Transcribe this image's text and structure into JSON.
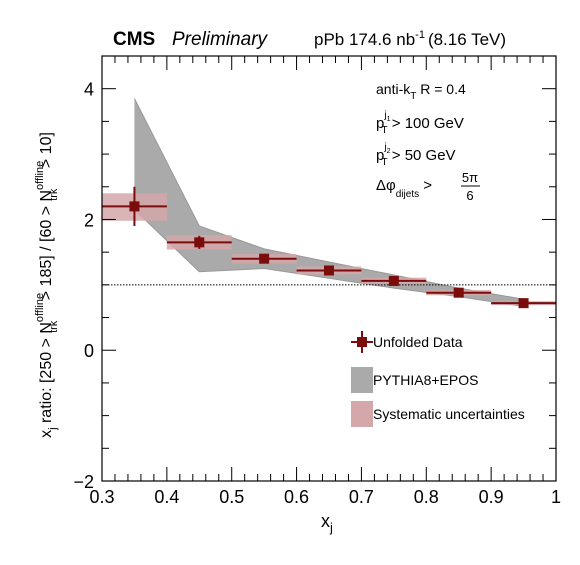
{
  "header": {
    "experiment": "CMS",
    "status": "Preliminary",
    "lumi_prefix": "pPb 174.6 nb",
    "lumi_sup": "-1",
    "energy": "(8.16 TeV)"
  },
  "annotations": {
    "algo_prefix": "anti-k",
    "algo_sub": "T",
    "algo_suffix": " R = 0.4",
    "pt1_p": "p",
    "pt1_sup": "j",
    "pt1_sup_sub": "1",
    "pt1_sub": "T",
    "pt1_cut": " > 100 GeV",
    "pt2_p": "p",
    "pt2_sup": "j",
    "pt2_sup_sub": "2",
    "pt2_sub": "T",
    "pt2_cut": " > 50 GeV",
    "dphi_sym": "Δφ",
    "dphi_sub": "dijets",
    "dphi_gt": " > ",
    "dphi_num": "5π",
    "dphi_den": "6"
  },
  "chart_data": {
    "type": "scatter",
    "xlabel": "x",
    "xlabel_sub": "j",
    "ylabel_parts": {
      "a": "x",
      "a_sub": "j",
      "b": " ratio: [250 > N",
      "b_sup": "offline",
      "b_sub": "trk",
      "c": " > 185] / [60 > N",
      "c_sup": "offline",
      "c_sub": "trk",
      "d": " > 10]"
    },
    "xlim": [
      0.3,
      1.0
    ],
    "ylim": [
      -2,
      4.5
    ],
    "xticks": [
      "0.3",
      "0.4",
      "0.5",
      "0.6",
      "0.7",
      "0.8",
      "0.9",
      "1"
    ],
    "xtick_values": [
      0.3,
      0.4,
      0.5,
      0.6,
      0.7,
      0.8,
      0.9,
      1.0
    ],
    "yticks": [
      "−2",
      "0",
      "2",
      "4"
    ],
    "ytick_values": [
      -2,
      0,
      2,
      4
    ],
    "reference_line": 1.0,
    "series": [
      {
        "name": "Unfolded Data",
        "color": "#7a0c0c",
        "points": [
          {
            "x": 0.35,
            "xlo": 0.3,
            "xhi": 0.4,
            "y": 2.2,
            "yerr": 0.3
          },
          {
            "x": 0.45,
            "xlo": 0.4,
            "xhi": 0.5,
            "y": 1.65,
            "yerr": 0.1
          },
          {
            "x": 0.55,
            "xlo": 0.5,
            "xhi": 0.6,
            "y": 1.4,
            "yerr": 0.04
          },
          {
            "x": 0.65,
            "xlo": 0.6,
            "xhi": 0.7,
            "y": 1.22,
            "yerr": 0.03
          },
          {
            "x": 0.75,
            "xlo": 0.7,
            "xhi": 0.8,
            "y": 1.06,
            "yerr": 0.02
          },
          {
            "x": 0.85,
            "xlo": 0.8,
            "xhi": 0.9,
            "y": 0.88,
            "yerr": 0.02
          },
          {
            "x": 0.95,
            "xlo": 0.9,
            "xhi": 1.0,
            "y": 0.72,
            "yerr": 0.02
          }
        ]
      },
      {
        "name": "PYTHIA8+EPOS",
        "color": "#aaaaaa",
        "band": [
          {
            "x": 0.35,
            "lo": 2.15,
            "hi": 3.85
          },
          {
            "x": 0.45,
            "lo": 1.2,
            "hi": 1.9
          },
          {
            "x": 0.55,
            "lo": 1.25,
            "hi": 1.55
          },
          {
            "x": 0.65,
            "lo": 1.1,
            "hi": 1.35
          },
          {
            "x": 0.75,
            "lo": 0.95,
            "hi": 1.15
          },
          {
            "x": 0.85,
            "lo": 0.82,
            "hi": 0.95
          },
          {
            "x": 0.95,
            "lo": 0.67,
            "hi": 0.78
          }
        ]
      },
      {
        "name": "Systematic uncertainties",
        "color": "#d4a7aa",
        "boxes": [
          {
            "xlo": 0.3,
            "xhi": 0.4,
            "lo": 1.98,
            "hi": 2.4
          },
          {
            "xlo": 0.4,
            "xhi": 0.5,
            "lo": 1.54,
            "hi": 1.76
          },
          {
            "xlo": 0.5,
            "xhi": 0.6,
            "lo": 1.33,
            "hi": 1.47
          },
          {
            "xlo": 0.6,
            "xhi": 0.7,
            "lo": 1.16,
            "hi": 1.28
          },
          {
            "xlo": 0.7,
            "xhi": 0.8,
            "lo": 1.01,
            "hi": 1.11
          },
          {
            "xlo": 0.8,
            "xhi": 0.9,
            "lo": 0.84,
            "hi": 0.92
          },
          {
            "xlo": 0.9,
            "xhi": 1.0,
            "lo": 0.69,
            "hi": 0.75
          }
        ]
      }
    ],
    "legend": {
      "placement": "bottom-right",
      "entries": [
        "Unfolded Data",
        "PYTHIA8+EPOS",
        "Systematic uncertainties"
      ]
    }
  }
}
